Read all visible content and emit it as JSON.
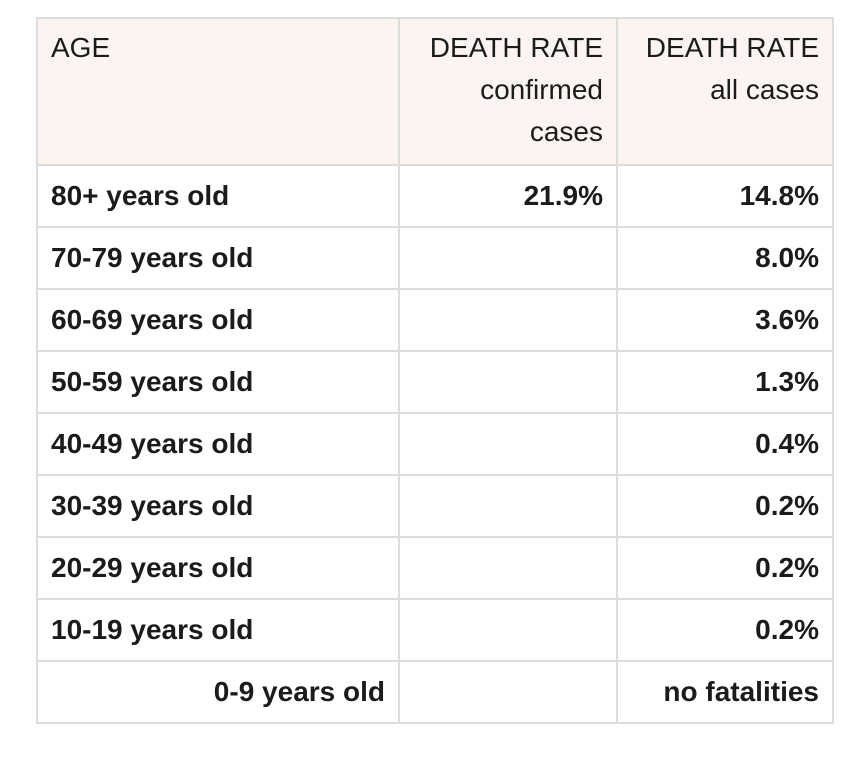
{
  "colors": {
    "page_bg": "#ffffff",
    "header_bg": "#fbf4f1",
    "border": "#dcdcdc",
    "text": "#1b1b1b"
  },
  "chart_data": {
    "type": "table",
    "columns": [
      {
        "label": "AGE",
        "lines": [
          "AGE"
        ],
        "align": "left"
      },
      {
        "label": "DEATH RATE confirmed cases",
        "lines": [
          "DEATH RATE",
          "confirmed",
          "cases"
        ],
        "align": "right"
      },
      {
        "label": "DEATH RATE all cases",
        "lines": [
          "DEATH RATE",
          "all cases"
        ],
        "align": "right"
      }
    ],
    "rows": [
      {
        "age": "80+ years old",
        "confirmed": "21.9%",
        "all": "14.8%"
      },
      {
        "age": "70-79 years old",
        "confirmed": "",
        "all": "8.0%"
      },
      {
        "age": "60-69 years old",
        "confirmed": "",
        "all": "3.6%"
      },
      {
        "age": "50-59 years old",
        "confirmed": "",
        "all": "1.3%"
      },
      {
        "age": "40-49 years old",
        "confirmed": "",
        "all": "0.4%"
      },
      {
        "age": "30-39 years old",
        "confirmed": "",
        "all": "0.2%"
      },
      {
        "age": "20-29 years old",
        "confirmed": "",
        "all": "0.2%"
      },
      {
        "age": "10-19 years old",
        "confirmed": "",
        "all": "0.2%"
      },
      {
        "age": "0-9 years old",
        "confirmed": "",
        "all": "no fatalities"
      }
    ]
  }
}
